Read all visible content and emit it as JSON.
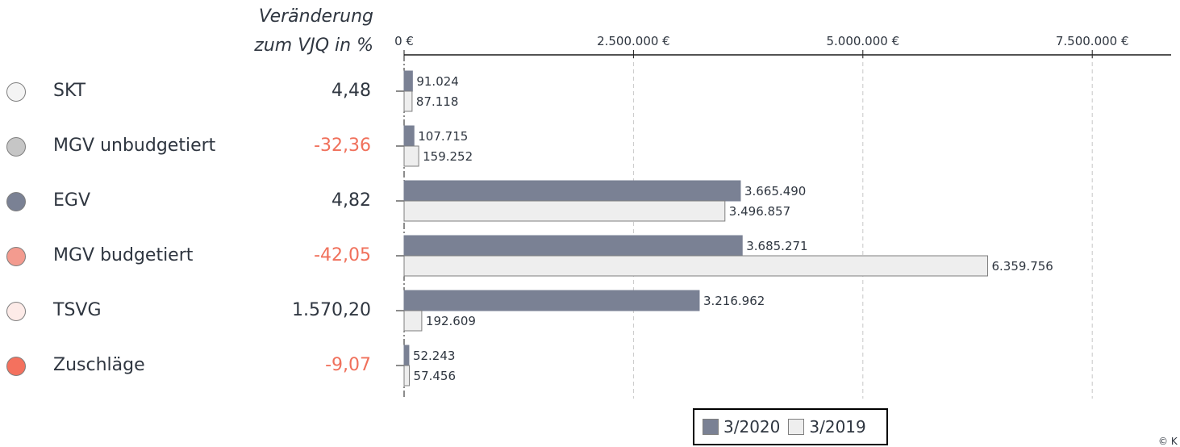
{
  "header": {
    "line1": "Veränderung",
    "line2": "zum VJQ in %"
  },
  "colors": {
    "series_2020": "#7a8194",
    "series_2019": "#eeeeee",
    "negative": "#f0705b",
    "positive": "#2f3640"
  },
  "rows": [
    {
      "label": "SKT",
      "dot_color": "#f4f4f4",
      "change": "4,48",
      "negative": false
    },
    {
      "label": "MGV unbudgetiert",
      "dot_color": "#c6c6c6",
      "change": "-32,36",
      "negative": true
    },
    {
      "label": "EGV",
      "dot_color": "#7a8194",
      "change": "4,82",
      "negative": false
    },
    {
      "label": "MGV budgetiert",
      "dot_color": "#f39b8f",
      "change": "-42,05",
      "negative": true
    },
    {
      "label": "TSVG",
      "dot_color": "#fdebe8",
      "change": "1.570,20",
      "negative": false
    },
    {
      "label": "Zuschläge",
      "dot_color": "#f4715e",
      "change": "-9,07",
      "negative": true
    }
  ],
  "chart_data": {
    "type": "bar",
    "orientation": "horizontal",
    "categories": [
      "SKT",
      "MGV unbudgetiert",
      "EGV",
      "MGV budgetiert",
      "TSVG",
      "Zuschläge"
    ],
    "series": [
      {
        "name": "3/2020",
        "values": [
          91024,
          107715,
          3665490,
          3685271,
          3216962,
          52243
        ],
        "labels": [
          "91.024",
          "107.715",
          "3.665.490",
          "3.685.271",
          "3.216.962",
          "52.243"
        ]
      },
      {
        "name": "3/2019",
        "values": [
          87118,
          159252,
          3496857,
          6359756,
          192609,
          57456
        ],
        "labels": [
          "87.118",
          "159.252",
          "3.496.857",
          "6.359.756",
          "192.609",
          "57.456"
        ]
      }
    ],
    "xlim": [
      0,
      8400000
    ],
    "ticks": [
      {
        "value": 0,
        "label": "0 €"
      },
      {
        "value": 2500000,
        "label": "2.500.000 €"
      },
      {
        "value": 5000000,
        "label": "5.000.000 €"
      },
      {
        "value": 7500000,
        "label": "7.500.000 €"
      }
    ],
    "grid": "vertical dashed",
    "axis_position": "top",
    "legend_position": "bottom-center"
  },
  "legend": {
    "items": [
      "3/2020",
      "3/2019"
    ]
  },
  "footer": {
    "copyright": "© K"
  }
}
